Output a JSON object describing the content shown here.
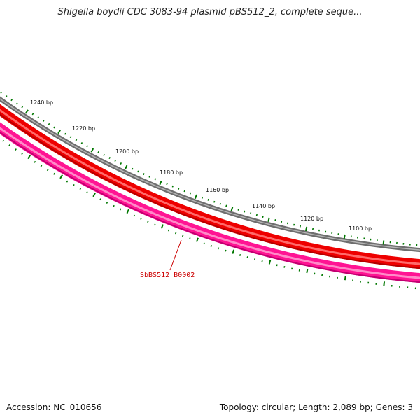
{
  "title": "Shigella boydii CDC 3083-94 plasmid pBS512_2, complete seque...",
  "footer": {
    "accession": "Accession: NC_010656",
    "summary": "Topology: circular; Length: 2,089 bp; Genes: 3"
  },
  "ruler_labels": [
    {
      "label": "1240 bp",
      "position_bp": 1240
    },
    {
      "label": "1220 bp",
      "position_bp": 1220
    },
    {
      "label": "1200 bp",
      "position_bp": 1200
    },
    {
      "label": "1180 bp",
      "position_bp": 1180
    },
    {
      "label": "1160 bp",
      "position_bp": 1160
    },
    {
      "label": "1140 bp",
      "position_bp": 1140
    },
    {
      "label": "1120 bp",
      "position_bp": 1120
    },
    {
      "label": "1100 bp",
      "position_bp": 1100
    }
  ],
  "gene_label": "SbBS512_B0002",
  "colors": {
    "backbone": "#808080",
    "cds": "#ff0000",
    "gene_feature": "#ff1493",
    "ruler": "#007700",
    "gene_label": "#cc0000"
  }
}
